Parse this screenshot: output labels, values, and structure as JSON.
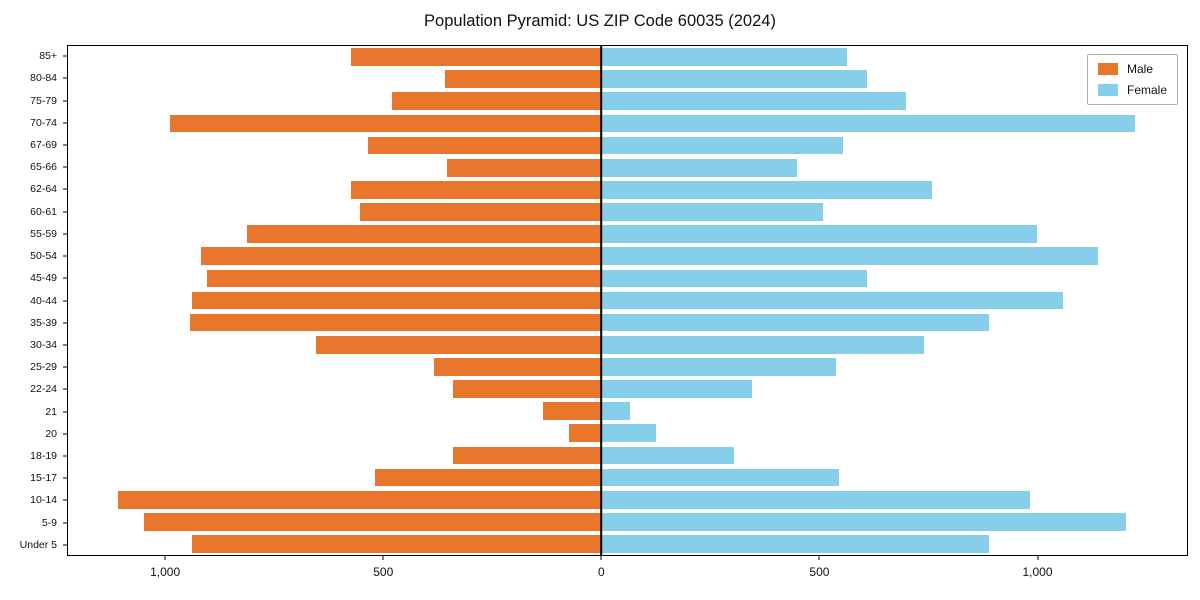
{
  "title": "Population Pyramid: US ZIP Code 60035 (2024)",
  "legend": {
    "male_label": "Male",
    "female_label": "Female"
  },
  "colors": {
    "male": "#e8762d",
    "female": "#87ceeb",
    "axis": "#000000"
  },
  "chart_data": {
    "type": "bar",
    "orientation": "horizontal-population-pyramid",
    "title": "Population Pyramid: US ZIP Code 60035 (2024)",
    "xlabel": "",
    "ylabel": "",
    "legend_position": "upper right",
    "grid": false,
    "categories": [
      "85+",
      "80-84",
      "75-79",
      "70-74",
      "67-69",
      "65-66",
      "62-64",
      "60-61",
      "55-59",
      "50-54",
      "45-49",
      "40-44",
      "35-39",
      "30-34",
      "25-29",
      "22-24",
      "21",
      "20",
      "18-19",
      "15-17",
      "10-14",
      "5-9",
      "Under 5"
    ],
    "series": [
      {
        "name": "Male",
        "values": [
          575,
          360,
          480,
          990,
          535,
          355,
          575,
          555,
          815,
          920,
          905,
          940,
          945,
          655,
          385,
          340,
          135,
          75,
          340,
          520,
          1110,
          1050,
          940
        ]
      },
      {
        "name": "Female",
        "values": [
          565,
          610,
          700,
          1225,
          555,
          450,
          760,
          510,
          1000,
          1140,
          610,
          1060,
          890,
          740,
          540,
          345,
          65,
          125,
          305,
          545,
          985,
          1205,
          890
        ]
      }
    ],
    "x_ticks": [
      -1000,
      -500,
      0,
      500,
      1000
    ],
    "x_tick_labels": [
      "1,000",
      "500",
      "0",
      "500",
      "1,000"
    ],
    "xlim": [
      -1225,
      1345
    ]
  }
}
